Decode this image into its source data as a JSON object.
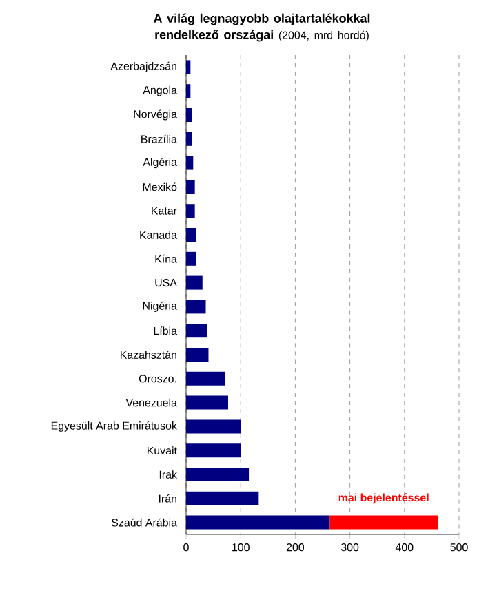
{
  "chart_data": {
    "type": "bar",
    "orientation": "horizontal",
    "stacked": true,
    "title": "A világ legnagyobb olajtartalékokkal rendelkező országai",
    "subtitle": "(2004, mrd hordó)",
    "categories": [
      "Azerbajdzsán",
      "Angola",
      "Norvégia",
      "Brazília",
      "Algéria",
      "Mexikó",
      "Katar",
      "Kanada",
      "Kína",
      "USA",
      "Nigéria",
      "Líbia",
      "Kazahsztán",
      "Oroszo.",
      "Venezuela",
      "Egyesült Arab Emirátusok",
      "Kuvait",
      "Irak",
      "Irán",
      "Szaúd Arábia"
    ],
    "series": [
      {
        "color": "#000080",
        "values": [
          8,
          8,
          11,
          11,
          13,
          16,
          16,
          18,
          18,
          30,
          36,
          39,
          41,
          72,
          77,
          100,
          100,
          115,
          133,
          263
        ]
      },
      {
        "name": "mai bejelentéssel",
        "color": "#ff0000",
        "values": [
          null,
          null,
          null,
          null,
          null,
          null,
          null,
          null,
          null,
          null,
          null,
          null,
          null,
          null,
          null,
          null,
          null,
          null,
          null,
          198
        ]
      }
    ],
    "xlim": [
      0,
      500
    ],
    "xticks": [
      0,
      100,
      200,
      300,
      400,
      500
    ],
    "grid": "x",
    "legend": false
  }
}
